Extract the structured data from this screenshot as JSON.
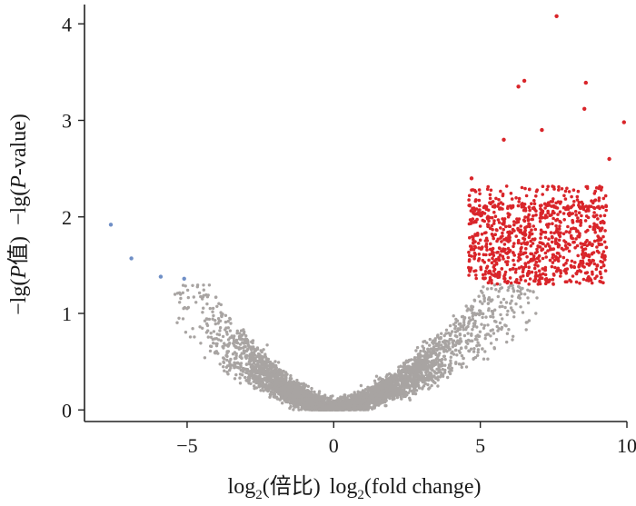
{
  "chart_data": {
    "type": "scatter",
    "title": "",
    "xlabel": {
      "prefix": "log",
      "sub": "2",
      "zh": "(倍比)",
      "en_prefix": "log",
      "en_sub": "2",
      "en": "(fold change)"
    },
    "ylabel": {
      "zh_a": "−lg(",
      "zh_p": "P",
      "zh_b": "值)",
      "en_a": "−lg(",
      "en_p": "P",
      "en_b": "-value)"
    },
    "xlim": [
      -8.5,
      10
    ],
    "ylim": [
      -0.12,
      4.2
    ],
    "xticks": [
      -5,
      0,
      5,
      10
    ],
    "xtick_labels": [
      "−5",
      "0",
      "5",
      "10"
    ],
    "yticks": [
      0,
      1,
      2,
      3,
      4
    ],
    "ytick_labels": [
      "0",
      "1",
      "2",
      "3",
      "4"
    ],
    "grid": false,
    "colors": {
      "not_significant": "#a8a4a2",
      "up": "#d9252a",
      "down": "#6f8fc6",
      "axis": "#222222"
    },
    "series": [
      {
        "key": "down",
        "color": "#6f8fc6",
        "points": [
          [
            -7.6,
            1.92
          ],
          [
            -6.9,
            1.57
          ],
          [
            -5.9,
            1.38
          ],
          [
            -5.1,
            1.36
          ]
        ]
      },
      {
        "key": "up_outliers",
        "color": "#d9252a",
        "points": [
          [
            7.6,
            4.08
          ],
          [
            6.5,
            3.41
          ],
          [
            6.3,
            3.35
          ],
          [
            8.6,
            3.39
          ],
          [
            8.55,
            3.12
          ],
          [
            9.9,
            2.98
          ],
          [
            4.7,
            2.4
          ],
          [
            9.4,
            2.6
          ],
          [
            5.8,
            2.8
          ],
          [
            7.1,
            2.9
          ]
        ]
      }
    ],
    "dense_regions": {
      "not_significant": {
        "color": "#a8a4a2",
        "count": 4500,
        "x_range": [
          -5.6,
          7.0
        ],
        "max_y": 1.3,
        "curve_a": 0.1,
        "curve_p": 1.42
      },
      "up": {
        "color": "#d9252a",
        "count": 950,
        "x_range": [
          4.6,
          9.3
        ],
        "y_range": [
          1.3,
          2.3
        ]
      }
    }
  }
}
